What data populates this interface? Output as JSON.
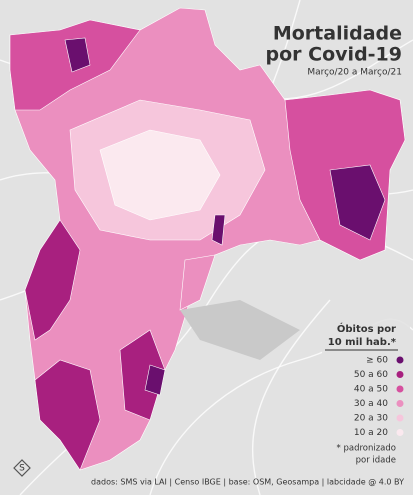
{
  "title": [
    "Mortalidade",
    "por Covid-19"
  ],
  "subtitle": "Março/20 a Março/21",
  "legend": {
    "title": [
      "Óbitos por",
      "10 mil hab.*"
    ],
    "items": [
      {
        "label": "≥ 60",
        "color": "#6a0f6e"
      },
      {
        "label": "50 a 60",
        "color": "#a8207f"
      },
      {
        "label": "40 a 50",
        "color": "#d6509f"
      },
      {
        "label": "30 a 40",
        "color": "#eb8fbf"
      },
      {
        "label": "20 a 30",
        "color": "#f6c6dc"
      },
      {
        "label": "10 a 20",
        "color": "#fbe9ef"
      }
    ],
    "note": [
      "* padronizado",
      "por idade"
    ]
  },
  "credits": "dados: SMS via LAI | Censo IBGE | base: OSM, Geosampa | labcidade @ 4.0 BY"
}
